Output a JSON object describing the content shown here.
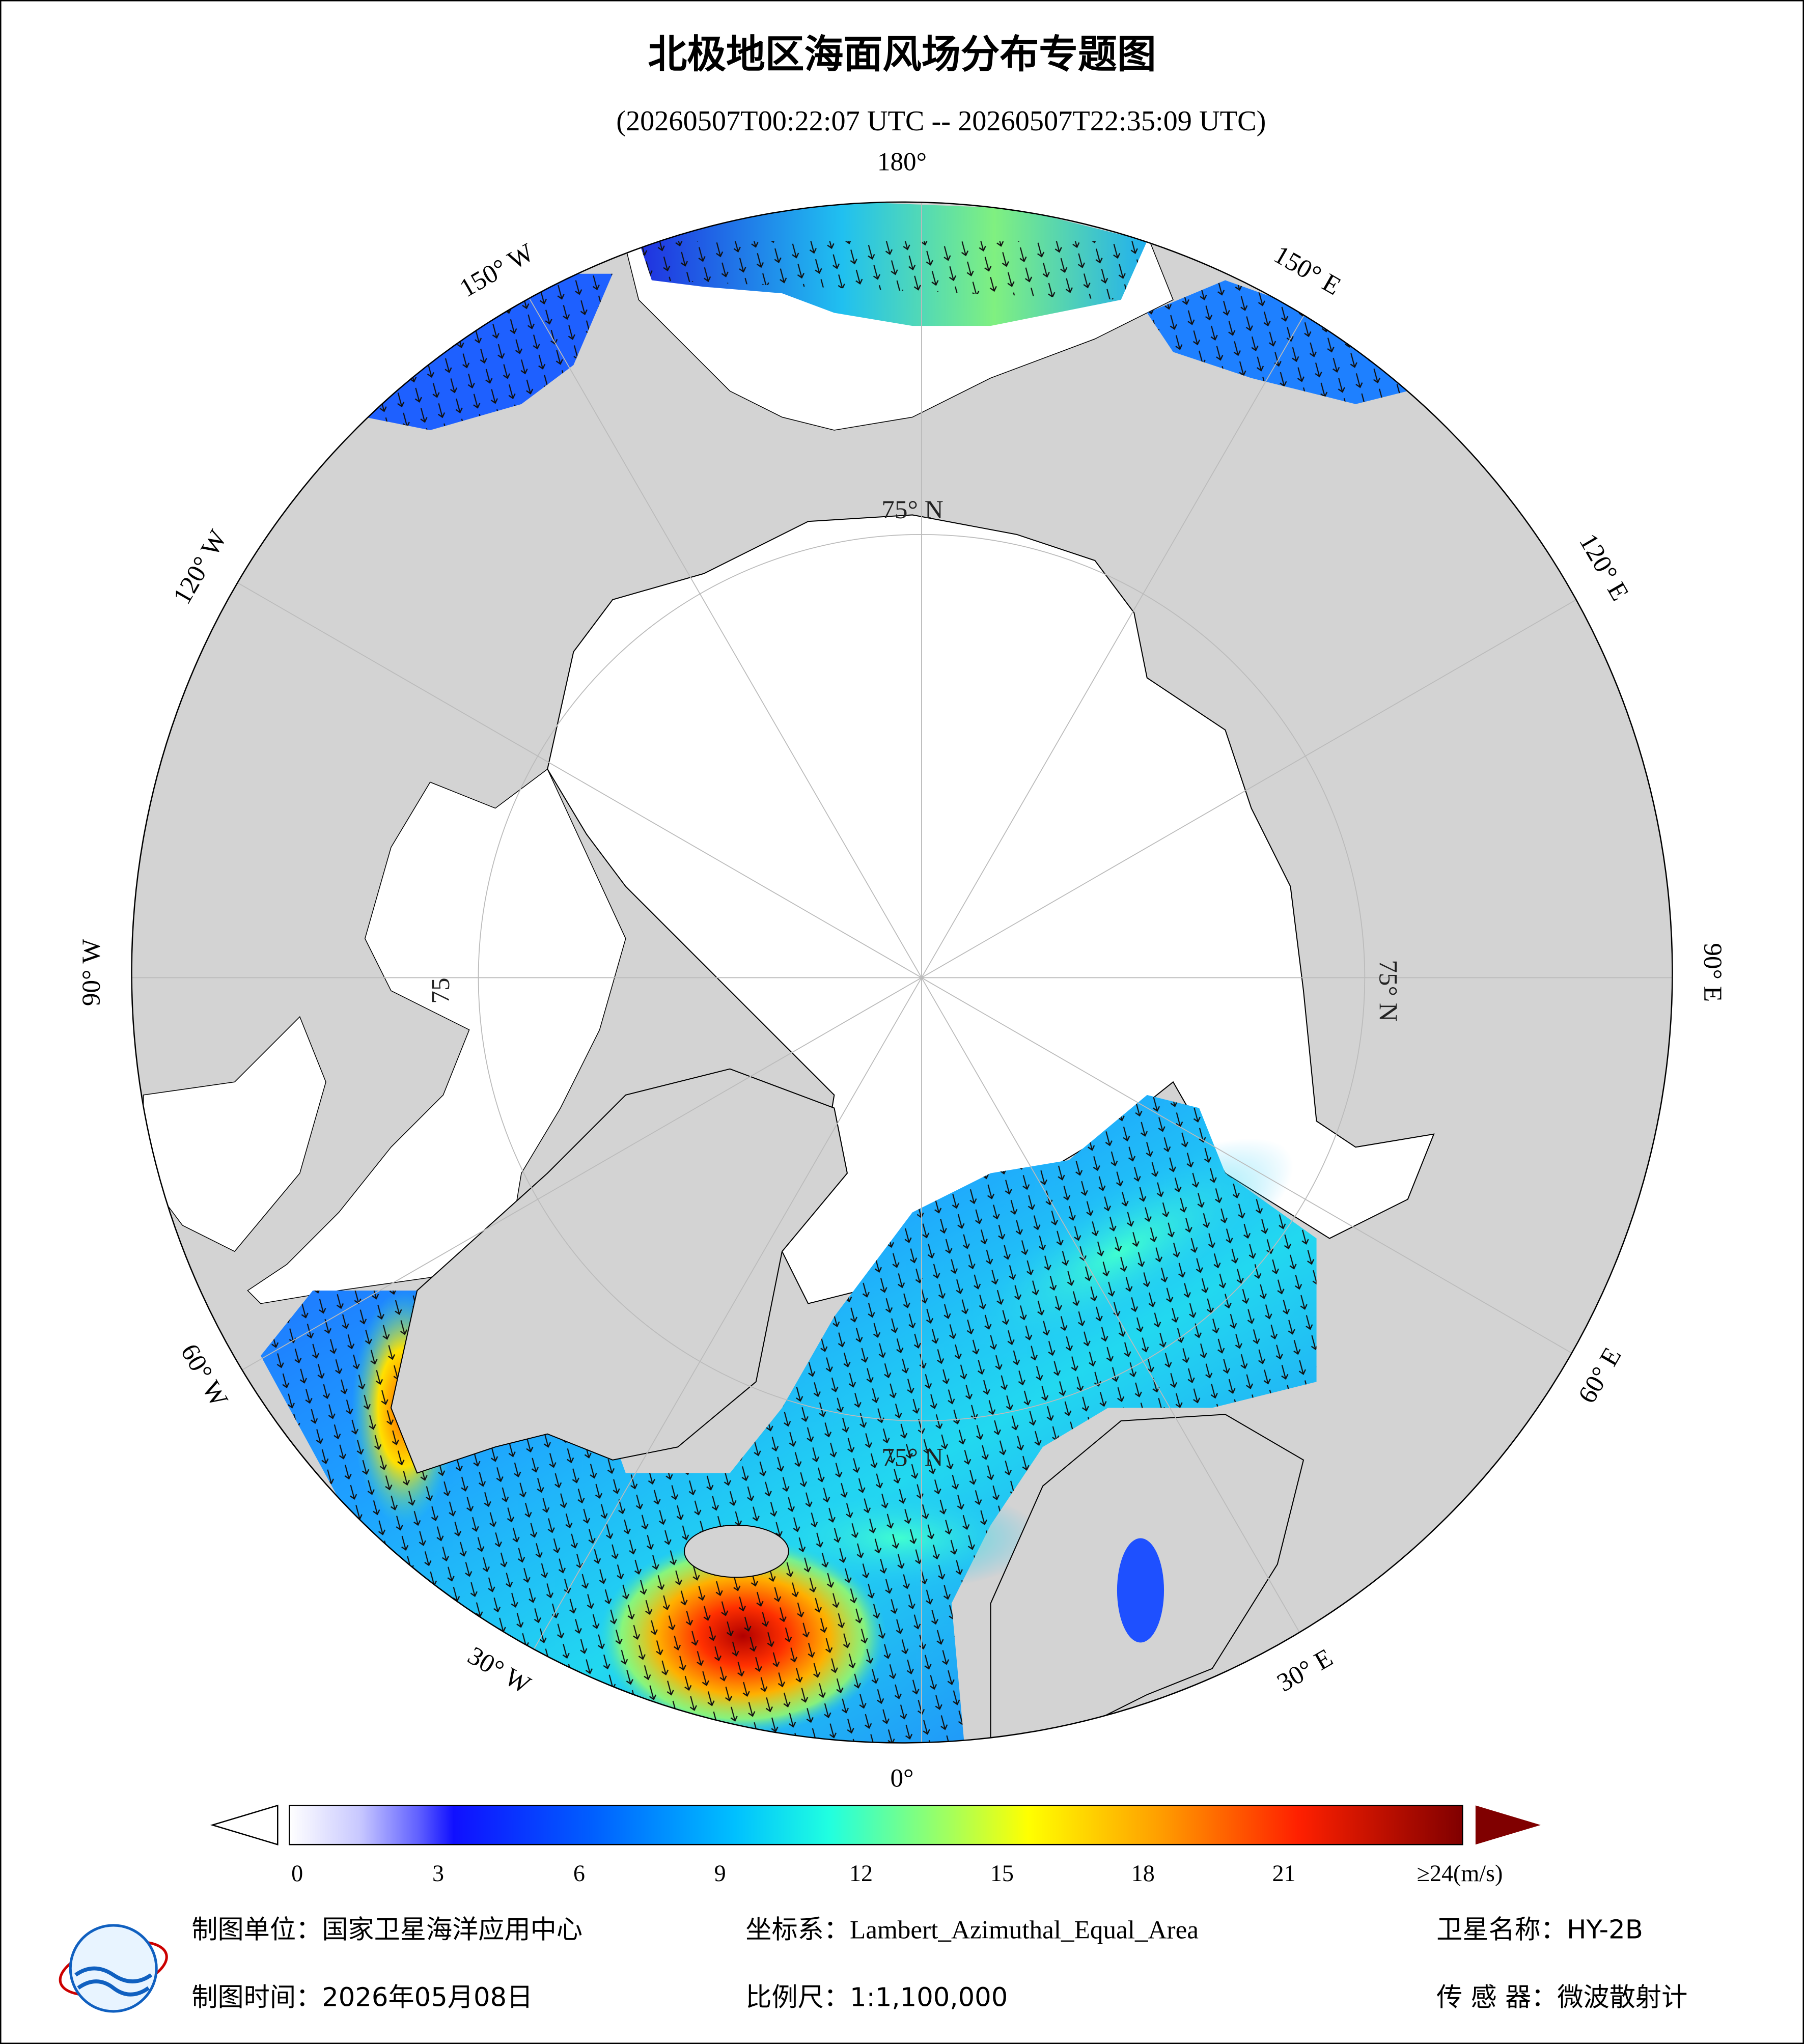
{
  "header": {
    "title": "北极地区海面风场分布专题图",
    "subtitle": "(20260507T00:22:07 UTC -- 20260507T22:35:09 UTC)"
  },
  "map": {
    "longitude_labels": [
      "180°",
      "150° E",
      "120° E",
      "90° E",
      "60° E",
      "30° E",
      "0°",
      "30° W",
      "60° W",
      "90° W",
      "120° W",
      "150° W"
    ],
    "latitude_labels": [
      "75° N",
      "75° N",
      "75° N",
      "75"
    ]
  },
  "colorbar": {
    "ticks": [
      0,
      3,
      6,
      9,
      12,
      15,
      18,
      21
    ],
    "max_label": "≥24(m/s)"
  },
  "footer": {
    "unit": "制图单位：国家卫星海洋应用中心",
    "projection": "坐标系：Lambert_Azimuthal_Equal_Area",
    "satellite": "卫星名称：HY-2B",
    "date": "制图时间：2026年05月08日",
    "scale": "比例尺：1:1,100,000",
    "sensor": "传 感 器：微波散射计"
  }
}
